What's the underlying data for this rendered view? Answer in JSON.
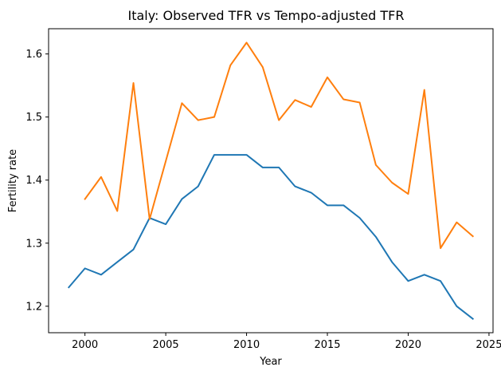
{
  "chart_data": {
    "type": "line",
    "title": "Italy: Observed TFR vs Tempo-adjusted TFR",
    "xlabel": "Year",
    "ylabel": "Fertility rate",
    "xlim": [
      1997.75,
      2025.25
    ],
    "ylim": [
      1.158,
      1.64
    ],
    "xticks": [
      2000,
      2005,
      2010,
      2015,
      2020,
      2025
    ],
    "yticks": [
      1.2,
      1.3,
      1.4,
      1.5,
      1.6
    ],
    "grid": false,
    "series": [
      {
        "name": "Observed TFR",
        "color": "#1f77b4",
        "points": [
          [
            1999,
            1.23
          ],
          [
            2000,
            1.26
          ],
          [
            2001,
            1.25
          ],
          [
            2002,
            1.27
          ],
          [
            2003,
            1.29
          ],
          [
            2004,
            1.34
          ],
          [
            2005,
            1.33
          ],
          [
            2006,
            1.37
          ],
          [
            2007,
            1.39
          ],
          [
            2008,
            1.44
          ],
          [
            2009,
            1.44
          ],
          [
            2010,
            1.44
          ],
          [
            2011,
            1.42
          ],
          [
            2012,
            1.42
          ],
          [
            2013,
            1.39
          ],
          [
            2014,
            1.38
          ],
          [
            2015,
            1.36
          ],
          [
            2016,
            1.36
          ],
          [
            2017,
            1.34
          ],
          [
            2018,
            1.31
          ],
          [
            2019,
            1.27
          ],
          [
            2020,
            1.24
          ],
          [
            2021,
            1.25
          ],
          [
            2022,
            1.24
          ],
          [
            2023,
            1.2
          ],
          [
            2024,
            1.18
          ]
        ]
      },
      {
        "name": "Tempo-adjusted TFR",
        "color": "#ff7f0e",
        "points": [
          [
            2000,
            1.37
          ],
          [
            2001,
            1.405
          ],
          [
            2002,
            1.351
          ],
          [
            2003,
            1.554
          ],
          [
            2004,
            1.338
          ],
          [
            2005,
            1.43
          ],
          [
            2006,
            1.522
          ],
          [
            2007,
            1.495
          ],
          [
            2008,
            1.5
          ],
          [
            2009,
            1.582
          ],
          [
            2010,
            1.618
          ],
          [
            2011,
            1.579
          ],
          [
            2012,
            1.495
          ],
          [
            2013,
            1.527
          ],
          [
            2014,
            1.516
          ],
          [
            2015,
            1.563
          ],
          [
            2016,
            1.528
          ],
          [
            2017,
            1.523
          ],
          [
            2018,
            1.424
          ],
          [
            2019,
            1.396
          ],
          [
            2020,
            1.378
          ],
          [
            2021,
            1.543
          ],
          [
            2022,
            1.292
          ],
          [
            2023,
            1.333
          ],
          [
            2024,
            1.311
          ]
        ]
      }
    ]
  }
}
